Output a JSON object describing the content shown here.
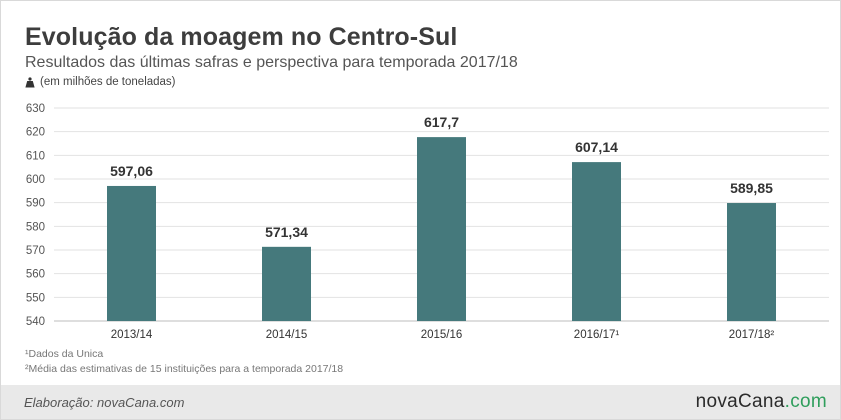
{
  "title": "Evolução da moagem no Centro-Sul",
  "subtitle": "Resultados das últimas safras e perspectiva para temporada 2017/18",
  "unit_label": "(em milhões de toneladas)",
  "unit_icon": "weight-icon",
  "footnotes": [
    "¹Dados da Unica",
    "²Média das estimativas de 15 instituições para a temporada 2017/18"
  ],
  "footer": {
    "credit": "Elaboração: novaCana.com",
    "logo_main": "novaCana",
    "logo_suffix": ".com"
  },
  "colors": {
    "bar": "#45797c",
    "grid": "#e2e2e2",
    "axis_text": "#555555",
    "label_text": "#333333",
    "logo_accent": "#2f9e5c"
  },
  "chart_data": {
    "type": "bar",
    "categories": [
      "2013/14",
      "2014/15",
      "2015/16",
      "2016/17¹",
      "2017/18²"
    ],
    "values": [
      597.06,
      571.34,
      617.7,
      607.14,
      589.85
    ],
    "value_labels": [
      "597,06",
      "571,34",
      "617,7",
      "607,14",
      "589,85"
    ],
    "yticks": [
      540,
      550,
      560,
      570,
      580,
      590,
      600,
      610,
      620,
      630
    ],
    "ylim": [
      540,
      630
    ],
    "grid": true,
    "legend": "none"
  }
}
